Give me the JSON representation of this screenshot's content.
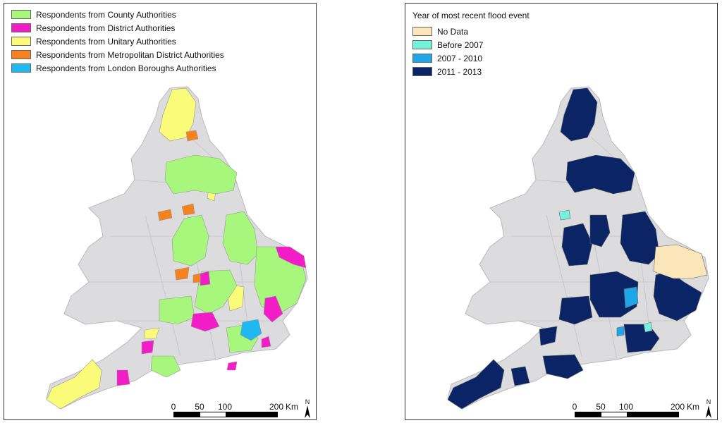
{
  "left_map": {
    "legend": [
      {
        "label": "Respondents from County Authorities",
        "color": "#a6f77b"
      },
      {
        "label": "Respondents from District Authorities",
        "color": "#f21dc6"
      },
      {
        "label": "Respondents from Unitary Authorities",
        "color": "#fbfb7a"
      },
      {
        "label": "Respondents from Metropolitan District Authorities",
        "color": "#f6821f"
      },
      {
        "label": "Respondents from London Boroughs Authorities",
        "color": "#1fb8f0"
      }
    ],
    "scale": {
      "ticks": [
        "0",
        "50",
        "100",
        "200"
      ],
      "unit": "Km"
    },
    "north_label": "N"
  },
  "right_map": {
    "legend_title": "Year of most recent flood event",
    "legend": [
      {
        "label": "No Data",
        "color": "#fbe6b9"
      },
      {
        "label": "Before 2007",
        "color": "#75f2d9"
      },
      {
        "label": "2007 - 2010",
        "color": "#1ea6e6"
      },
      {
        "label": "2011 - 2013",
        "color": "#0b2466"
      }
    ],
    "scale": {
      "ticks": [
        "0",
        "50",
        "100",
        "200"
      ],
      "unit": "Km"
    },
    "north_label": "N"
  },
  "colors": {
    "base_land": "#dcdcdf",
    "boundary": "#b9b9be"
  }
}
